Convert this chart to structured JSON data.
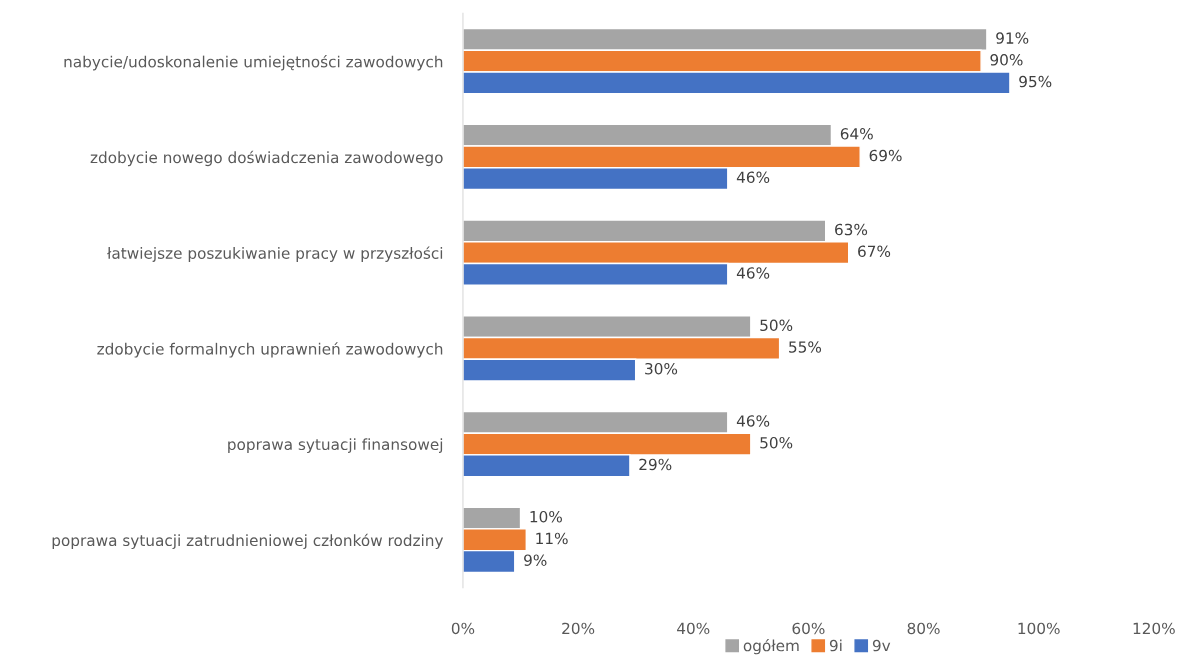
{
  "chart_data": {
    "type": "bar",
    "orientation": "horizontal",
    "categories": [
      "nabycie/udoskonalenie umiejętności zawodowych",
      "zdobycie nowego doświadczenia zawodowego",
      "łatwiejsze poszukiwanie pracy w przyszłości",
      "zdobycie formalnych uprawnień zawodowych",
      "poprawa sytuacji finansowej",
      "poprawa sytuacji zatrudnieniowej członków rodziny"
    ],
    "series": [
      {
        "name": "ogółem",
        "color": "#a5a5a5",
        "values": [
          91,
          64,
          63,
          50,
          46,
          10
        ],
        "value_labels": [
          "91%",
          "64%",
          "63%",
          "50%",
          "46%",
          "10%"
        ]
      },
      {
        "name": "9i",
        "color": "#ed7d31",
        "values": [
          90,
          69,
          67,
          55,
          50,
          11
        ],
        "value_labels": [
          "90%",
          "69%",
          "67%",
          "55%",
          "50%",
          "11%"
        ]
      },
      {
        "name": "9v",
        "color": "#4472c4",
        "values": [
          95,
          46,
          46,
          30,
          29,
          9
        ],
        "value_labels": [
          "95%",
          "46%",
          "46%",
          "30%",
          "29%",
          "9%"
        ]
      }
    ],
    "xlim": [
      0,
      120
    ],
    "xticks": [
      {
        "value": 0,
        "label": "0%"
      },
      {
        "value": 20,
        "label": "20%"
      },
      {
        "value": 40,
        "label": "40%"
      },
      {
        "value": 60,
        "label": "60%"
      },
      {
        "value": 80,
        "label": "80%"
      },
      {
        "value": 100,
        "label": "100%"
      },
      {
        "value": 120,
        "label": "120%"
      }
    ],
    "grid": false,
    "legend": "bottom"
  }
}
